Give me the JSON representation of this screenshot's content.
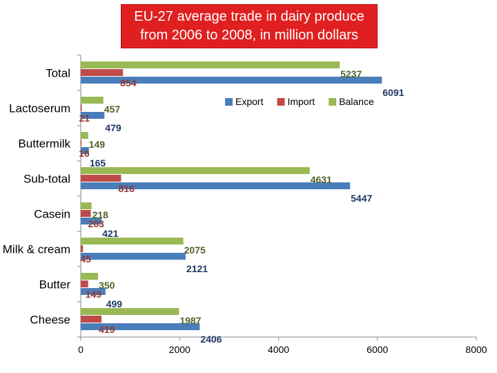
{
  "chart_data": {
    "type": "bar",
    "orientation": "horizontal",
    "title_lines": [
      "EU-27 average trade in dairy produce",
      "from 2006 to 2008, in million dollars"
    ],
    "categories": [
      "Total",
      "Lactoserum",
      "Buttermilk",
      "Sub-total",
      "Casein",
      "Milk & cream",
      "Butter",
      "Cheese"
    ],
    "series": [
      {
        "name": "Export",
        "color": "#4a7ebb",
        "label_color": "#1f3864",
        "values": [
          6091,
          479,
          165,
          5447,
          421,
          2121,
          499,
          2406
        ]
      },
      {
        "name": "Import",
        "color": "#be4b48",
        "label_color": "#953735",
        "values": [
          854,
          21,
          16,
          816,
          203,
          45,
          149,
          419
        ]
      },
      {
        "name": "Balance",
        "color": "#98b954",
        "label_color": "#4f6228",
        "values": [
          5237,
          457,
          149,
          4631,
          218,
          2075,
          350,
          1987
        ]
      }
    ],
    "xlim": [
      0,
      8000
    ],
    "xticks": [
      0,
      2000,
      4000,
      6000,
      8000
    ],
    "grid": false,
    "legend_position": "top-right"
  }
}
